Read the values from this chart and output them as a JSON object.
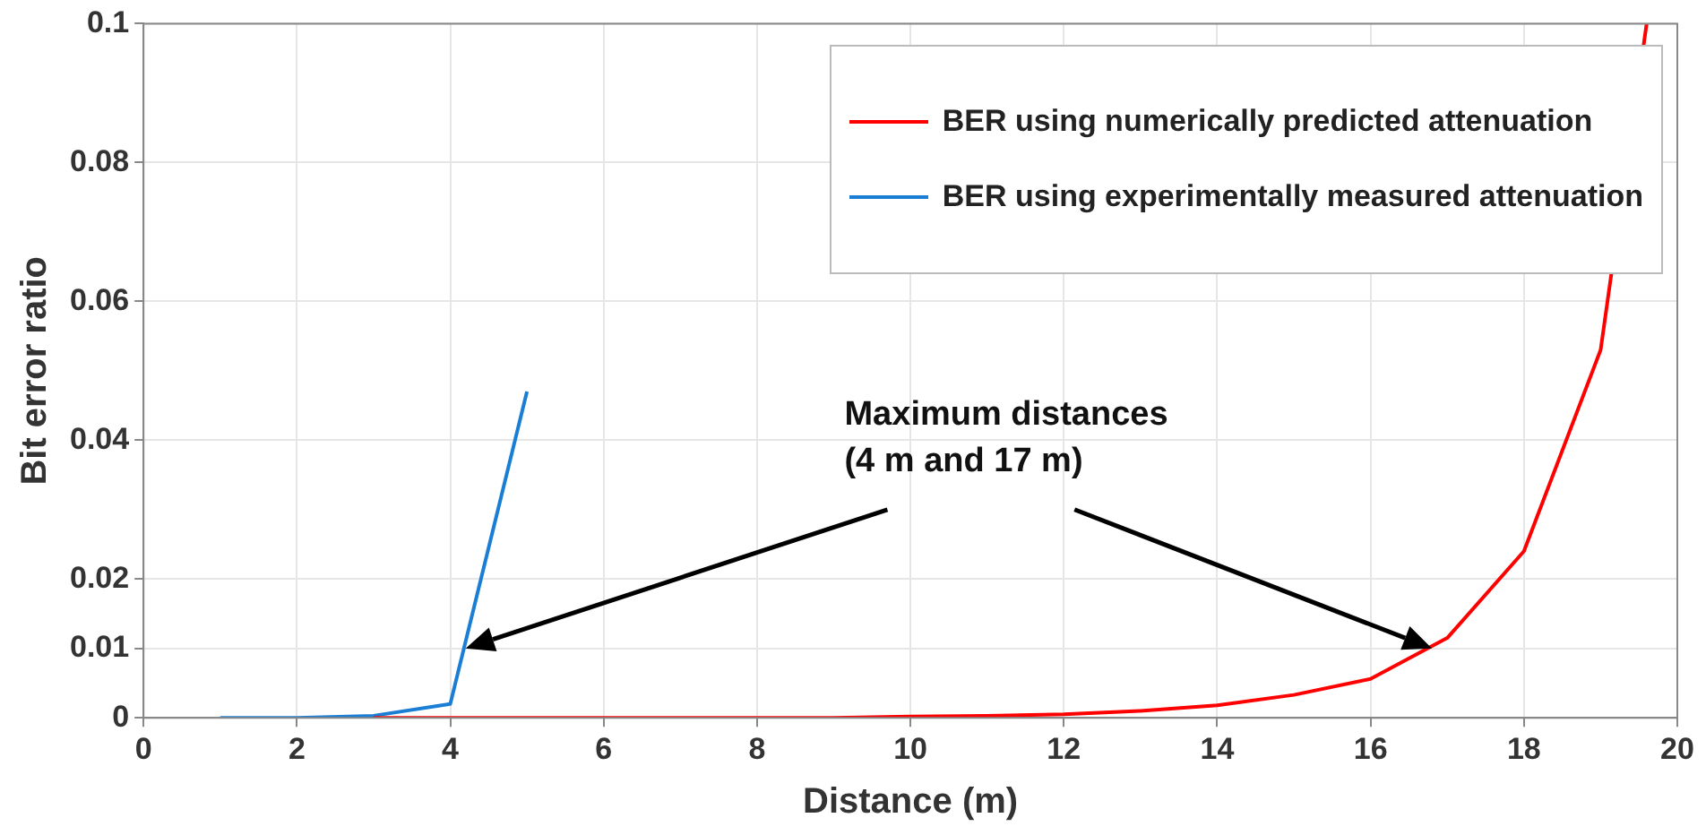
{
  "chart_data": {
    "type": "line",
    "xlabel": "Distance (m)",
    "ylabel": "Bit error ratio",
    "xlim": [
      0,
      20
    ],
    "xticks": [
      0,
      2,
      4,
      6,
      8,
      10,
      12,
      14,
      16,
      18,
      20
    ],
    "ylim": [
      0,
      0.1
    ],
    "yticks": [
      0,
      0.01,
      0.02,
      0.04,
      0.06,
      0.08,
      0.1
    ],
    "grid": true,
    "legend": "top right",
    "marker": "none",
    "line_style": "solid",
    "annotations": [
      "Maximum distances",
      "(4 m and 17 m)"
    ],
    "series": [
      {
        "name": "BER using numerically predicted attenuation",
        "color": "#ff0000",
        "x": [
          3,
          4,
          5,
          6,
          7,
          8,
          9,
          10,
          11,
          12,
          13,
          14,
          15,
          16,
          17,
          18,
          19,
          19.6
        ],
        "values": [
          0,
          0,
          0,
          0,
          0,
          0,
          0,
          0.0002,
          0.0003,
          0.0005,
          0.001,
          0.0018,
          0.0033,
          0.0056,
          0.0115,
          0.024,
          0.053,
          0.1
        ]
      },
      {
        "name": "BER using experimentally measured attenuation",
        "color": "#1a7fd4",
        "x": [
          1,
          2,
          3,
          4,
          5
        ],
        "values": [
          0,
          0,
          0.0003,
          0.002,
          0.047
        ]
      }
    ]
  }
}
